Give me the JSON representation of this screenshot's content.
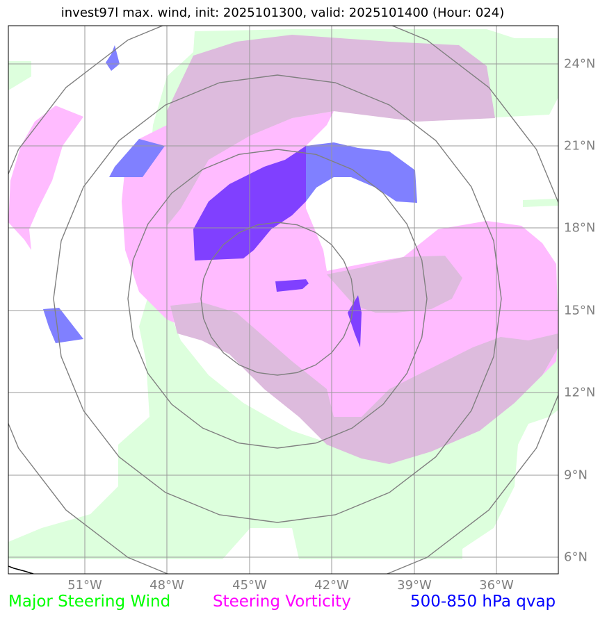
{
  "title": "invest97l max. wind, init: 2025101300, valid: 2025101400 (Hour: 024)",
  "latitude_labels": [
    "24°N",
    "21°N",
    "18°N",
    "15°N",
    "12°N",
    "9°N",
    "6°N"
  ],
  "longitude_labels": [
    "51°W",
    "48°W",
    "45°W",
    "42°W",
    "39°W",
    "36°W"
  ],
  "legend": {
    "green": {
      "label": "Major Steering Wind",
      "color": "#00ff00"
    },
    "magenta": {
      "label": "Steering Vorticity",
      "color": "#ff00ff"
    },
    "blue": {
      "label": "500-850 hPa qvap",
      "color": "#0000ff"
    }
  },
  "colors": {
    "wind_fill": "#ddffdd",
    "vorticity_fill": "#ffbbff",
    "overlap_fill": "#ddbbdd",
    "qvap_fill": "#8080ff",
    "qvap_overlap_fill": "#8040ff",
    "grid": "#999999",
    "range_rings": "#808080"
  }
}
